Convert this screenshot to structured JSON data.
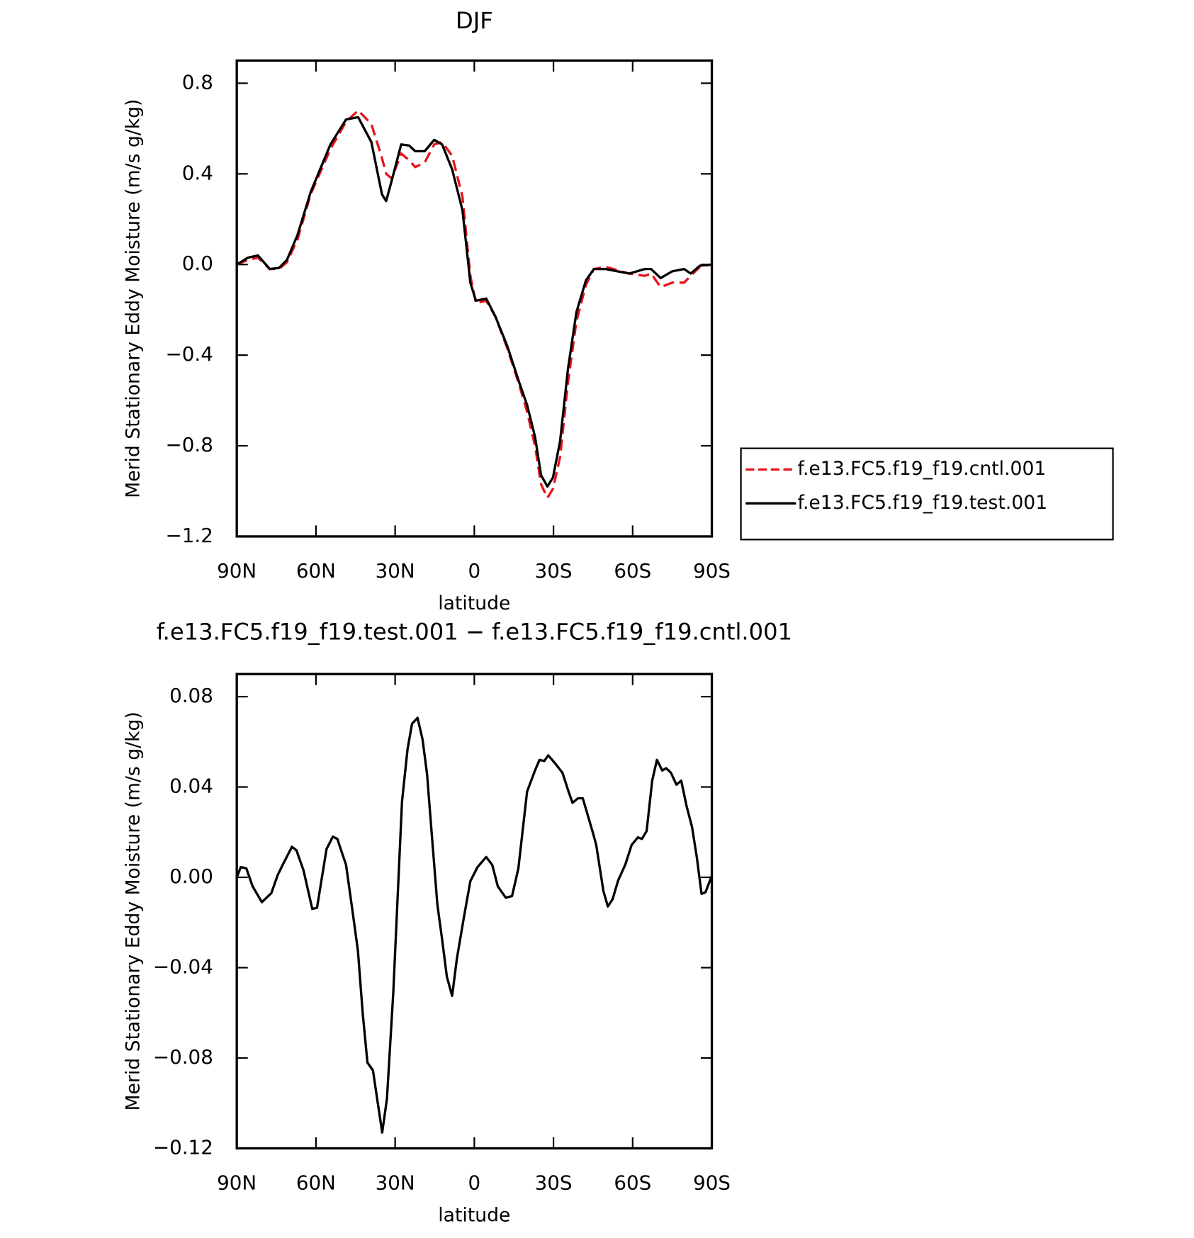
{
  "chart_data": [
    {
      "type": "line",
      "title": "DJF",
      "x_label": "latitude",
      "y_label": "Merid Stationary Eddy Moisture (m/s g/kg)",
      "xlim": [
        90,
        -90
      ],
      "xticks": [
        {
          "value": 90,
          "label": "90N"
        },
        {
          "value": 60,
          "label": "60N"
        },
        {
          "value": 30,
          "label": "30N"
        },
        0,
        {
          "value": -30,
          "label": "30S"
        },
        {
          "value": -60,
          "label": "60S"
        },
        {
          "value": -90,
          "label": "90S"
        }
      ],
      "ylim": [
        -1.2,
        0.9
      ],
      "yticks": [
        {
          "value": -1.2,
          "label": "−1.2"
        },
        {
          "value": -0.8,
          "label": "−0.8"
        },
        {
          "value": -0.4,
          "label": "−0.4"
        },
        {
          "value": 0,
          "label": "0.0"
        },
        0.4,
        0.8
      ],
      "legend": "outside right",
      "x": [
        90,
        85.8,
        82,
        77.5,
        74,
        71,
        67,
        62,
        54.5,
        48.6,
        44,
        39,
        35,
        33.4,
        31.3,
        27.7,
        24.7,
        22.4,
        18.8,
        15.2,
        12.2,
        8.4,
        4.5,
        1.5,
        -0.6,
        -4.5,
        -8,
        -12.5,
        -17,
        -20,
        -23,
        -25.3,
        -27.7,
        -29.8,
        -32.5,
        -35.5,
        -38.7,
        -42.3,
        -45.3,
        -49.7,
        -58.7,
        -64.6,
        -67,
        -70.6,
        -75,
        -79.5,
        -82,
        -85.5,
        -90
      ],
      "series": [
        {
          "name": "f.e13.FC5.f19_f19.cntl.001",
          "color": "#e8141c",
          "dashed": true,
          "values": [
            0,
            0.02,
            0.03,
            -0.02,
            -0.02,
            0.01,
            0.11,
            0.31,
            0.51,
            0.63,
            0.68,
            0.62,
            0.47,
            0.4,
            0.38,
            0.49,
            0.46,
            0.43,
            0.45,
            0.53,
            0.54,
            0.48,
            0.3,
            -0.05,
            -0.17,
            -0.16,
            -0.23,
            -0.37,
            -0.53,
            -0.65,
            -0.8,
            -0.97,
            -1.03,
            -0.99,
            -0.85,
            -0.52,
            -0.25,
            -0.09,
            -0.02,
            -0.01,
            -0.04,
            -0.05,
            -0.04,
            -0.1,
            -0.08,
            -0.08,
            -0.05,
            -0.01,
            0
          ]
        },
        {
          "name": "f.e13.FC5.f19_f19.test.001",
          "color": "#000000",
          "dashed": false,
          "values": [
            0,
            0.03,
            0.04,
            -0.02,
            -0.015,
            0.02,
            0.13,
            0.32,
            0.53,
            0.64,
            0.65,
            0.54,
            0.31,
            0.28,
            0.37,
            0.53,
            0.525,
            0.5,
            0.5,
            0.55,
            0.53,
            0.42,
            0.24,
            -0.08,
            -0.16,
            -0.15,
            -0.23,
            -0.36,
            -0.52,
            -0.62,
            -0.76,
            -0.93,
            -0.98,
            -0.94,
            -0.78,
            -0.46,
            -0.21,
            -0.07,
            -0.02,
            -0.02,
            -0.04,
            -0.02,
            -0.02,
            -0.06,
            -0.03,
            -0.02,
            -0.04,
            -0.005,
            0
          ]
        }
      ]
    },
    {
      "type": "line",
      "title": "f.e13.FC5.f19_f19.test.001 − f.e13.FC5.f19_f19.cntl.001",
      "x_label": "latitude",
      "y_label": "Merid Stationary Eddy Moisture (m/s g/kg)",
      "xlim": [
        90,
        -90
      ],
      "xticks": [
        {
          "value": 90,
          "label": "90N"
        },
        {
          "value": 60,
          "label": "60N"
        },
        {
          "value": 30,
          "label": "30N"
        },
        0,
        {
          "value": -30,
          "label": "30S"
        },
        {
          "value": -60,
          "label": "60S"
        },
        {
          "value": -90,
          "label": "90S"
        }
      ],
      "ylim": [
        -0.12,
        0.09
      ],
      "yticks": [
        {
          "value": -0.12,
          "label": "−0.12"
        },
        {
          "value": -0.08,
          "label": "−0.08"
        },
        {
          "value": -0.04,
          "label": "−0.04"
        },
        {
          "value": 0,
          "label": "0.00"
        },
        0.04,
        0.08
      ],
      "x": [
        90,
        88.5,
        86.4,
        84,
        80.5,
        76.9,
        74.5,
        72.4,
        69.1,
        67.4,
        64.7,
        61.4,
        59.6,
        56,
        53.6,
        51.9,
        48.6,
        46.5,
        44.1,
        42.3,
        40.5,
        38.4,
        36.7,
        34.9,
        33.1,
        30.7,
        27.4,
        25.3,
        23.6,
        21.5,
        19.6,
        17.9,
        16.1,
        14,
        12.2,
        10.4,
        8.4,
        6.6,
        3.9,
        1.5,
        -1.2,
        -4.5,
        -6.8,
        -8.9,
        -11.9,
        -14.3,
        -16.7,
        -20,
        -23,
        -24.7,
        -26.5,
        -28,
        -30.4,
        -33.4,
        -35.7,
        -37.2,
        -39.3,
        -41.1,
        -45,
        -46.2,
        -48.9,
        -50.6,
        -52.4,
        -54.5,
        -57.2,
        -59.6,
        -62,
        -63.5,
        -65.3,
        -67.4,
        -69.2,
        -71.2,
        -72.7,
        -74.5,
        -76.6,
        -78.4,
        -80.4,
        -82.5,
        -84.3,
        -86.1,
        -87.6,
        -90
      ],
      "series": [
        {
          "color": "#000000",
          "dashed": false,
          "values": [
            0,
            0.0045,
            0.004,
            -0.004,
            -0.011,
            -0.007,
            0.001,
            0.006,
            0.0135,
            0.012,
            0.003,
            -0.014,
            -0.0135,
            0.0125,
            0.018,
            0.017,
            0.0055,
            -0.012,
            -0.0325,
            -0.06,
            -0.082,
            -0.0855,
            -0.099,
            -0.113,
            -0.098,
            -0.051,
            0.0335,
            0.0567,
            0.068,
            0.0706,
            0.061,
            0.0456,
            0.0188,
            -0.012,
            -0.0275,
            -0.044,
            -0.0525,
            -0.036,
            -0.0174,
            -0.0017,
            0.0045,
            0.009,
            0.0055,
            -0.004,
            -0.009,
            -0.0083,
            0.004,
            0.038,
            0.0473,
            0.052,
            0.0515,
            0.054,
            0.0508,
            0.0463,
            0.038,
            0.033,
            0.035,
            0.035,
            0.0195,
            0.0143,
            -0.006,
            -0.0129,
            -0.0097,
            -0.0014,
            0.0056,
            0.0143,
            0.0177,
            0.017,
            0.0205,
            0.0428,
            0.052,
            0.0473,
            0.0483,
            0.0463,
            0.041,
            0.0428,
            0.0317,
            0.0223,
            0.009,
            -0.0073,
            -0.0066,
            0.0007
          ]
        }
      ]
    }
  ]
}
